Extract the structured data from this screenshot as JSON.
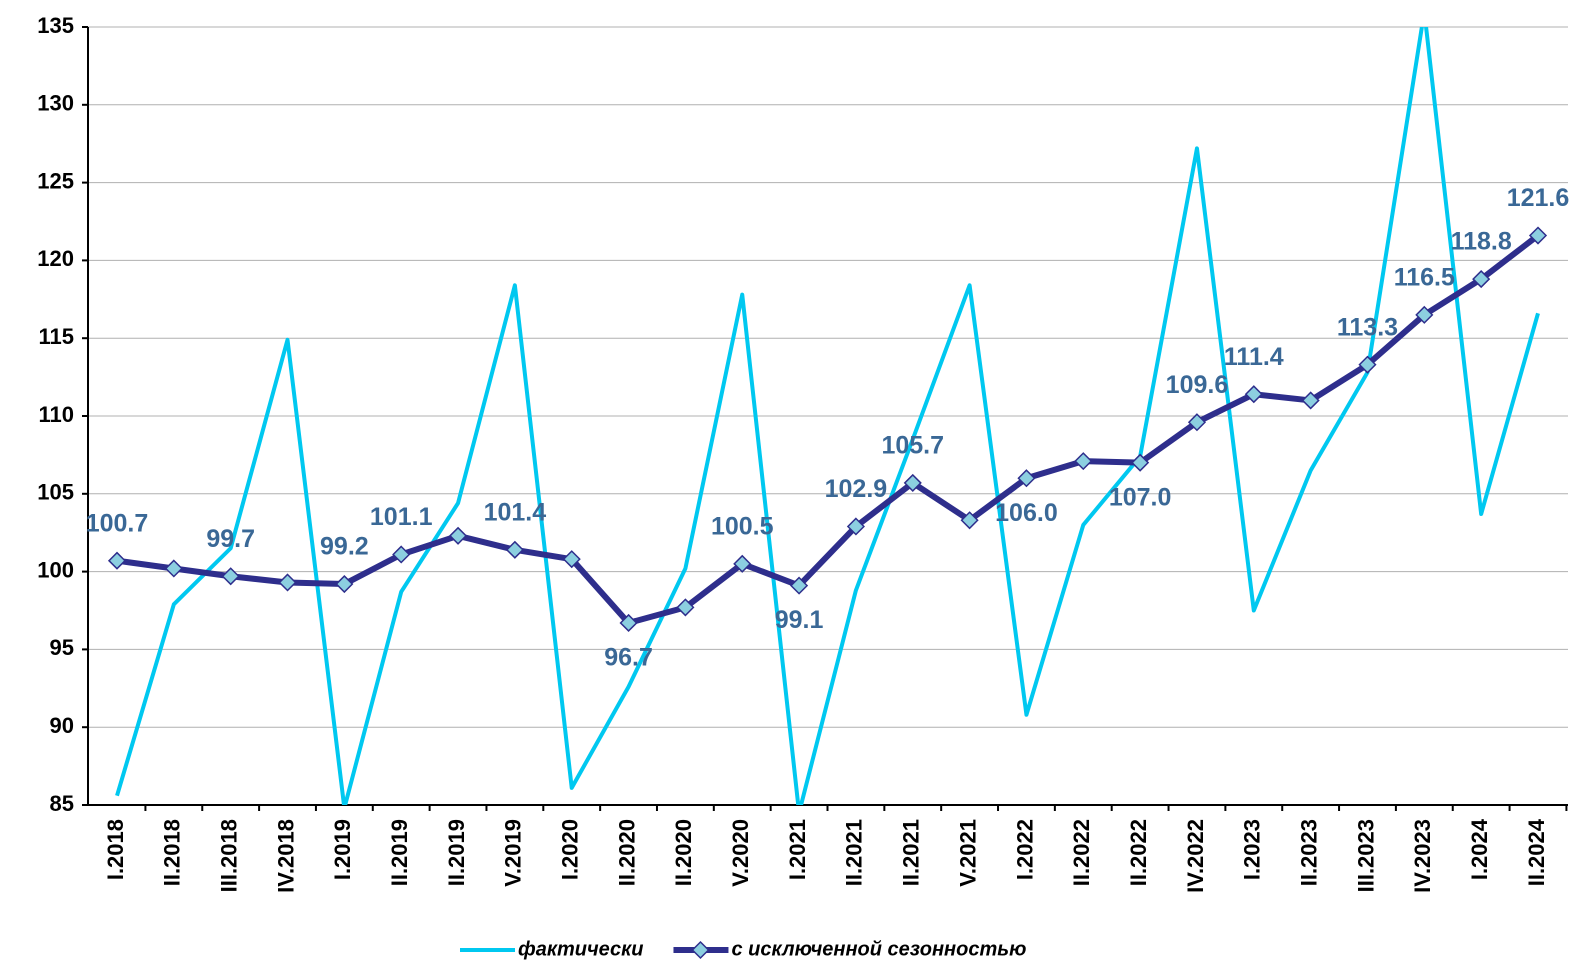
{
  "chart_data": {
    "type": "line",
    "categories": [
      "I.2018",
      "II.2018",
      "III.2018",
      "IV.2018",
      "I.2019",
      "II.2019",
      "II.2019",
      "V.2019",
      "I.2020",
      "II.2020",
      "II.2020",
      "V.2020",
      "I.2021",
      "II.2021",
      "II.2021",
      "V.2021",
      "I.2022",
      "II.2022",
      "II.2022",
      "IV.2022",
      "I.2023",
      "II.2023",
      "III.2023",
      "IV.2023",
      "I.2024",
      "II.2024"
    ],
    "series": [
      {
        "name": "фактически",
        "color": "#00c8f0",
        "values": [
          85.6,
          97.9,
          101.5,
          114.9,
          84.8,
          98.7,
          104.4,
          118.4,
          86.1,
          92.6,
          100.2,
          117.8,
          84.5,
          98.8,
          108.5,
          118.4,
          90.8,
          103.0,
          107.4,
          127.2,
          97.5,
          106.5,
          112.8,
          136.0,
          103.7,
          116.6
        ]
      },
      {
        "name": "с исключенной сезонностью",
        "color": "#2e2e8c",
        "marker_color": "#8ccfe0",
        "label_color": "#3a6896",
        "values": [
          100.7,
          100.2,
          99.7,
          99.3,
          99.2,
          101.1,
          102.3,
          101.4,
          100.8,
          96.7,
          97.7,
          100.5,
          99.1,
          102.9,
          105.7,
          103.3,
          106.0,
          107.1,
          107.0,
          109.6,
          111.4,
          111.0,
          113.3,
          116.5,
          118.8,
          121.6
        ],
        "value_labels": [
          "100.7",
          null,
          "99.7",
          null,
          "99.2",
          "101.1",
          null,
          "101.4",
          null,
          "96.7",
          null,
          "100.5",
          "99.1",
          "102.9",
          "105.7",
          null,
          "106.0",
          null,
          "107.0",
          "109.6",
          "111.4",
          null,
          "113.3",
          "116.5",
          "118.8",
          "121.6"
        ]
      }
    ],
    "ylim": [
      85,
      135
    ],
    "yticks": [
      85,
      90,
      95,
      100,
      105,
      110,
      115,
      120,
      125,
      130,
      135
    ],
    "grid": true,
    "legend": "bottom"
  }
}
